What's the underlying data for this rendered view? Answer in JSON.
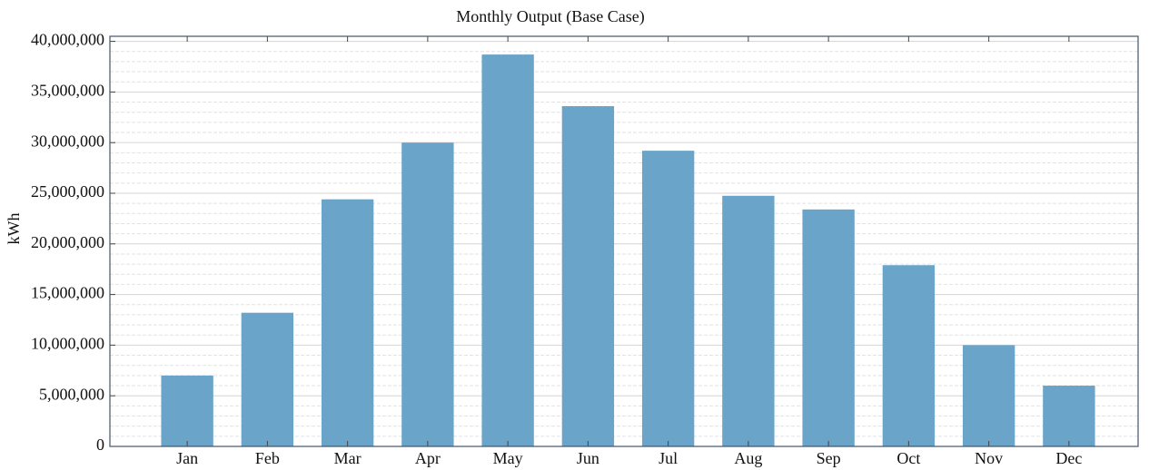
{
  "chart_data": {
    "type": "bar",
    "title": "Monthly Output (Base Case)",
    "y_label": "kWh",
    "categories": [
      "Jan",
      "Feb",
      "Mar",
      "Apr",
      "May",
      "Jun",
      "Jul",
      "Aug",
      "Sep",
      "Oct",
      "Nov",
      "Dec"
    ],
    "values": [
      7000000,
      13200000,
      24400000,
      30000000,
      38700000,
      33600000,
      29200000,
      24750000,
      23400000,
      17900000,
      10000000,
      6000000
    ],
    "color": "#6aa5c9",
    "ylim": [
      0,
      40500000
    ],
    "yticks": [
      0,
      {
        "value": 5000000,
        "label": "5,000,000"
      },
      {
        "value": 10000000,
        "label": "10,000,000"
      },
      {
        "value": 15000000,
        "label": "15,000,000"
      },
      {
        "value": 20000000,
        "label": "20,000,000"
      },
      {
        "value": 25000000,
        "label": "25,000,000"
      },
      {
        "value": 30000000,
        "label": "30,000,000"
      },
      {
        "value": 35000000,
        "label": "35,000,000"
      },
      {
        "value": 40000000,
        "label": "40,000,000"
      }
    ],
    "grid": true
  }
}
